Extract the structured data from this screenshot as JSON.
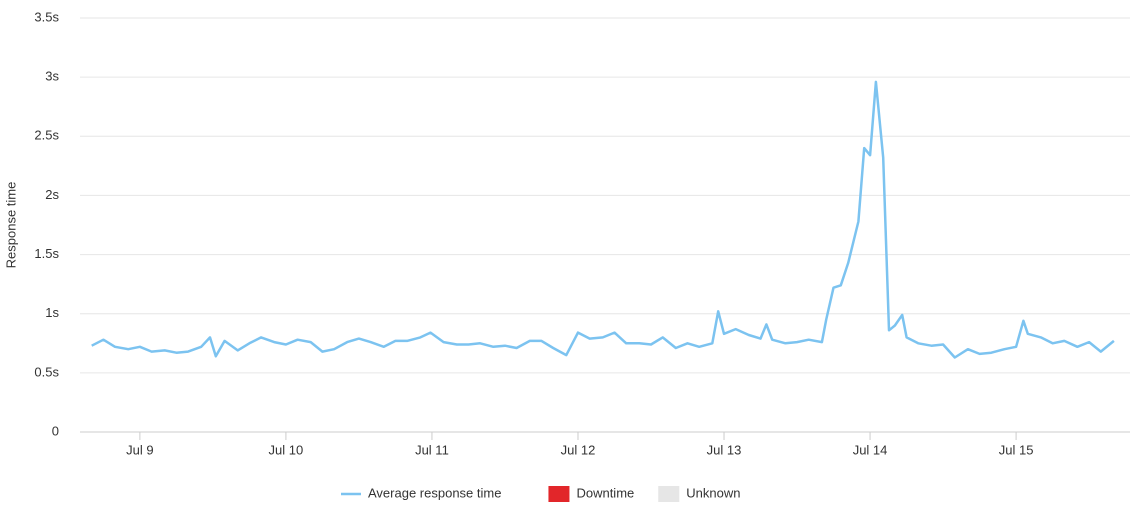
{
  "chart_data": {
    "type": "line",
    "y_label": "Response time",
    "x": [
      8.67,
      8.75,
      8.83,
      8.92,
      9.0,
      9.08,
      9.17,
      9.25,
      9.33,
      9.42,
      9.48,
      9.52,
      9.58,
      9.67,
      9.75,
      9.83,
      9.92,
      10.0,
      10.08,
      10.17,
      10.25,
      10.33,
      10.42,
      10.5,
      10.58,
      10.67,
      10.75,
      10.83,
      10.92,
      10.99,
      11.08,
      11.17,
      11.25,
      11.33,
      11.42,
      11.5,
      11.58,
      11.67,
      11.75,
      11.83,
      11.92,
      12.0,
      12.08,
      12.17,
      12.25,
      12.33,
      12.42,
      12.5,
      12.58,
      12.67,
      12.75,
      12.83,
      12.92,
      12.96,
      13.0,
      13.08,
      13.17,
      13.25,
      13.29,
      13.33,
      13.42,
      13.5,
      13.58,
      13.67,
      13.7,
      13.75,
      13.8,
      13.85,
      13.92,
      13.96,
      14.0,
      14.04,
      14.09,
      14.13,
      14.17,
      14.22,
      14.25,
      14.33,
      14.42,
      14.5,
      14.58,
      14.67,
      14.75,
      14.83,
      14.92,
      15.0,
      15.05,
      15.08,
      15.17,
      15.25,
      15.33,
      15.42,
      15.5,
      15.58,
      15.67
    ],
    "series": [
      {
        "name": "Average response time",
        "color": "#7cc3f0",
        "values": [
          0.73,
          0.78,
          0.72,
          0.7,
          0.72,
          0.68,
          0.69,
          0.67,
          0.68,
          0.72,
          0.8,
          0.64,
          0.77,
          0.69,
          0.75,
          0.8,
          0.76,
          0.74,
          0.78,
          0.76,
          0.68,
          0.7,
          0.76,
          0.79,
          0.76,
          0.72,
          0.77,
          0.77,
          0.8,
          0.84,
          0.76,
          0.74,
          0.74,
          0.75,
          0.72,
          0.73,
          0.71,
          0.77,
          0.77,
          0.71,
          0.65,
          0.84,
          0.79,
          0.8,
          0.84,
          0.75,
          0.75,
          0.74,
          0.8,
          0.71,
          0.75,
          0.72,
          0.75,
          1.02,
          0.83,
          0.87,
          0.82,
          0.79,
          0.91,
          0.78,
          0.75,
          0.76,
          0.78,
          0.76,
          0.95,
          1.22,
          1.24,
          1.43,
          1.78,
          2.4,
          2.34,
          2.96,
          2.32,
          0.86,
          0.9,
          0.99,
          0.8,
          0.75,
          0.73,
          0.74,
          0.63,
          0.7,
          0.66,
          0.67,
          0.7,
          0.72,
          0.94,
          0.83,
          0.8,
          0.75,
          0.77,
          0.72,
          0.76,
          0.68,
          0.77
        ]
      }
    ],
    "legend_items": [
      {
        "name": "Downtime",
        "color": "#e2262a"
      },
      {
        "name": "Unknown",
        "color": "#e6e6e6"
      }
    ],
    "xlim": [
      8.59,
      15.78
    ],
    "xticks": [
      {
        "value": 9,
        "label": "Jul 9"
      },
      {
        "value": 10,
        "label": "Jul 10"
      },
      {
        "value": 11,
        "label": "Jul 11"
      },
      {
        "value": 12,
        "label": "Jul 12"
      },
      {
        "value": 13,
        "label": "Jul 13"
      },
      {
        "value": 14,
        "label": "Jul 14"
      },
      {
        "value": 15,
        "label": "Jul 15"
      }
    ],
    "ylim": [
      0,
      3.5
    ],
    "yticks": [
      0,
      {
        "value": 0.5,
        "label": "0.5s"
      },
      {
        "value": 1,
        "label": "1s"
      },
      {
        "value": 1.5,
        "label": "1.5s"
      },
      {
        "value": 2,
        "label": "2s"
      },
      {
        "value": 2.5,
        "label": "2.5s"
      },
      {
        "value": 3,
        "label": "3s"
      },
      {
        "value": 3.5,
        "label": "3.5s"
      }
    ],
    "grid": true
  }
}
